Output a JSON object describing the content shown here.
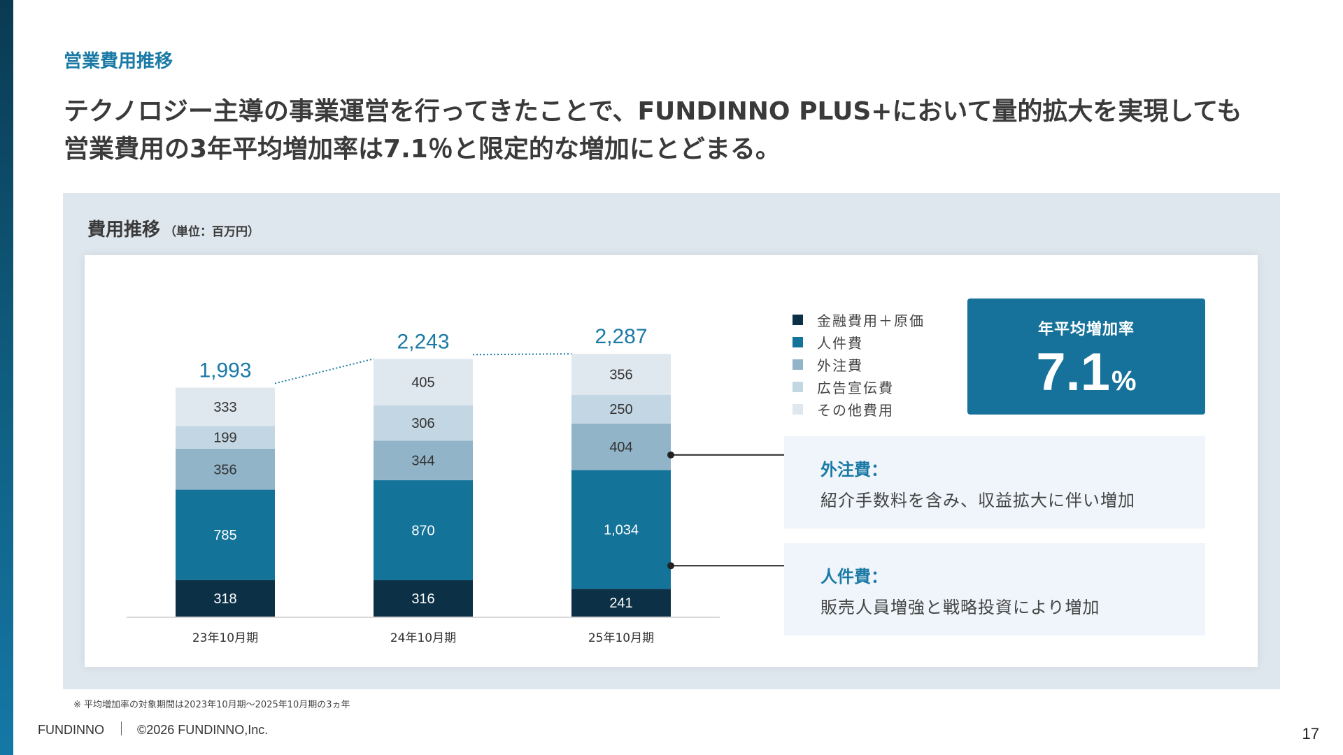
{
  "slide": {
    "section_label": "営業費用推移",
    "headline_line1": "テクノロジー主導の事業運営を行ってきたことで、FUNDINNO PLUS+において量的拡大を実現しても",
    "headline_line2": "営業費用の3年平均増加率は7.1％と限定的な増加にとどまる。",
    "panel_title": "費用推移",
    "panel_unit": "（単位：百万円）",
    "footnote": "※ 平均増加率の対象期間は2023年10月期～2025年10月期の3ヵ年",
    "footer_brand": "FUNDINNO",
    "footer_copyright": "©2026 FUNDINNO,Inc.",
    "page_number": "17"
  },
  "rate_box": {
    "label": "年平均増加率",
    "value": "7.1",
    "unit": "%"
  },
  "notes": [
    {
      "title": "外注費：",
      "text": "紹介手数料を含み、収益拡大に伴い増加"
    },
    {
      "title": "人件費：",
      "text": "販売人員増強と戦略投資により増加"
    }
  ],
  "chart_data": {
    "type": "bar",
    "stacked": true,
    "categories": [
      "23年10月期",
      "24年10月期",
      "25年10月期"
    ],
    "totals": [
      "1,993",
      "2,243",
      "2,287"
    ],
    "series": [
      {
        "name": "金融費用＋原価",
        "values": [
          318,
          316,
          241
        ],
        "labels": [
          "318",
          "316",
          "241"
        ],
        "color": "#0c3046",
        "label_color": "#ffffff"
      },
      {
        "name": "人件費",
        "values": [
          785,
          870,
          1034
        ],
        "labels": [
          "785",
          "870",
          "1,034"
        ],
        "color": "#137399",
        "label_color": "#ffffff"
      },
      {
        "name": "外注費",
        "values": [
          356,
          344,
          404
        ],
        "labels": [
          "356",
          "344",
          "404"
        ],
        "color": "#92b4c9",
        "label_color": "#333333"
      },
      {
        "name": "広告宣伝費",
        "values": [
          199,
          306,
          250
        ],
        "labels": [
          "199",
          "306",
          "250"
        ],
        "color": "#c3d6e3",
        "label_color": "#333333"
      },
      {
        "name": "その他費用",
        "values": [
          333,
          405,
          356
        ],
        "labels": [
          "333",
          "405",
          "356"
        ],
        "color": "#e0e8ef",
        "label_color": "#333333"
      }
    ],
    "total_label_color": "#1a7aa5",
    "legend_position": "top-right",
    "grid": false
  }
}
